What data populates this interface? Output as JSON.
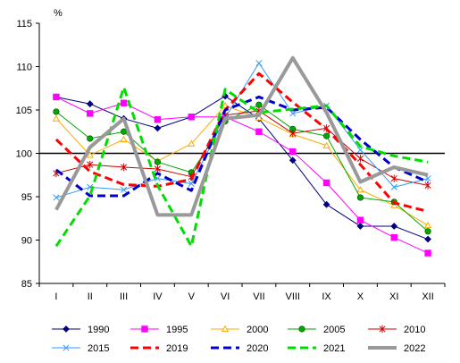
{
  "chart_data": {
    "type": "line",
    "unit_label": "%",
    "categories": [
      "I",
      "II",
      "III",
      "IV",
      "V",
      "VI",
      "VII",
      "VIII",
      "IX",
      "X",
      "XI",
      "XII"
    ],
    "ylim": [
      85,
      115
    ],
    "yticks": [
      85,
      90,
      95,
      100,
      105,
      110,
      115
    ],
    "reference_line": 100,
    "grid": false,
    "legend_position": "bottom",
    "series": [
      {
        "name": "1990",
        "color": "#000080",
        "dash": "solid",
        "width": 1,
        "marker": "diamond",
        "values": [
          106.5,
          105.7,
          104.0,
          102.9,
          104.2,
          106.6,
          104.0,
          99.2,
          94.1,
          91.6,
          91.6,
          90.1
        ]
      },
      {
        "name": "1995",
        "color": "#ff00ff",
        "dash": "solid",
        "width": 1,
        "marker": "square",
        "values": [
          106.5,
          104.6,
          105.8,
          103.9,
          104.2,
          104.2,
          102.5,
          100.2,
          96.6,
          92.3,
          90.3,
          88.5
        ]
      },
      {
        "name": "2000",
        "color": "#ffaa00",
        "dash": "solid",
        "width": 1,
        "marker": "triangle",
        "values": [
          104.0,
          99.8,
          101.6,
          99.1,
          101.1,
          105.5,
          104.1,
          102.2,
          100.9,
          95.8,
          94.0,
          91.7
        ]
      },
      {
        "name": "2005",
        "color": "#00aa00",
        "dash": "solid",
        "width": 1,
        "marker": "circle",
        "values": [
          104.8,
          101.7,
          102.5,
          99.0,
          97.8,
          103.7,
          105.6,
          102.8,
          102.0,
          94.9,
          94.4,
          91.0
        ]
      },
      {
        "name": "2010",
        "color": "#cc0000",
        "dash": "solid",
        "width": 1,
        "marker": "star",
        "values": [
          97.7,
          98.7,
          98.4,
          98.2,
          97.3,
          104.4,
          104.9,
          102.3,
          102.9,
          99.4,
          97.1,
          96.3
        ]
      },
      {
        "name": "2015",
        "color": "#3399ff",
        "dash": "solid",
        "width": 1,
        "marker": "x",
        "values": [
          94.9,
          96.1,
          95.8,
          97.1,
          96.5,
          104.1,
          110.4,
          104.6,
          105.5,
          100.4,
          96.1,
          97.1
        ]
      },
      {
        "name": "2019",
        "color": "#ff0000",
        "dash": "dashed",
        "width": 3,
        "marker": "none",
        "values": [
          101.6,
          97.9,
          96.4,
          96.2,
          97.0,
          105.0,
          109.2,
          105.9,
          102.8,
          98.7,
          94.3,
          93.3
        ]
      },
      {
        "name": "2020",
        "color": "#0000cc",
        "dash": "dashed",
        "width": 3,
        "marker": "none",
        "values": [
          98.1,
          95.1,
          95.1,
          97.7,
          95.7,
          105.0,
          106.5,
          105.0,
          105.3,
          101.6,
          98.4,
          96.7
        ]
      },
      {
        "name": "2021",
        "color": "#00dd00",
        "dash": "dashed",
        "width": 3,
        "marker": "none",
        "values": [
          89.3,
          95.1,
          107.6,
          96.3,
          89.3,
          107.4,
          104.7,
          105.1,
          105.5,
          100.8,
          99.7,
          99.0
        ]
      },
      {
        "name": "2022",
        "color": "#999999",
        "dash": "solid",
        "width": 4,
        "marker": "none",
        "values": [
          93.5,
          100.7,
          104.0,
          92.9,
          92.9,
          104.0,
          104.4,
          111.0,
          104.7,
          96.7,
          98.4,
          97.5
        ]
      }
    ]
  }
}
